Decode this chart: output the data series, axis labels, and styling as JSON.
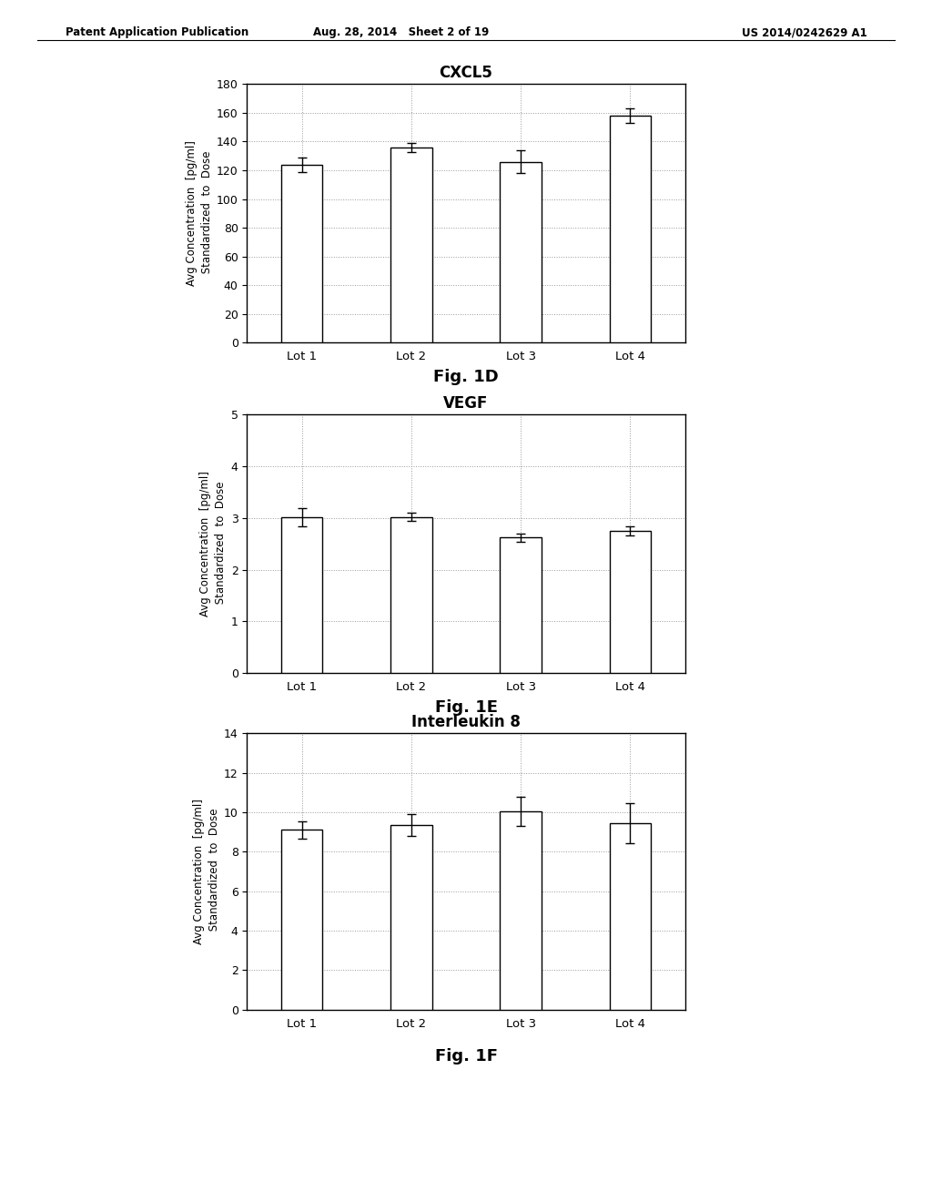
{
  "charts": [
    {
      "title": "CXCL5",
      "fig_label": "Fig. 1D",
      "categories": [
        "Lot 1",
        "Lot 2",
        "Lot 3",
        "Lot 4"
      ],
      "values": [
        124.0,
        136.0,
        126.0,
        158.0
      ],
      "errors": [
        5.0,
        3.0,
        8.0,
        5.0
      ],
      "ylim": [
        0,
        180
      ],
      "yticks": [
        0,
        20,
        40,
        60,
        80,
        100,
        120,
        140,
        160,
        180
      ],
      "ylabel": "Avg Concentration  [pg/ml]\n Standardized  to  Dose"
    },
    {
      "title": "VEGF",
      "fig_label": "Fig. 1E",
      "categories": [
        "Lot 1",
        "Lot 2",
        "Lot 3",
        "Lot 4"
      ],
      "values": [
        3.02,
        3.02,
        2.62,
        2.75
      ],
      "errors": [
        0.18,
        0.08,
        0.08,
        0.09
      ],
      "ylim": [
        0,
        5
      ],
      "yticks": [
        0,
        1,
        2,
        3,
        4,
        5
      ],
      "ylabel": "Avg Concentration  [pg/ml]\n Standardized  to  Dose"
    },
    {
      "title": "Interleukin 8",
      "fig_label": "Fig. 1F",
      "categories": [
        "Lot 1",
        "Lot 2",
        "Lot 3",
        "Lot 4"
      ],
      "values": [
        9.1,
        9.35,
        10.05,
        9.45
      ],
      "errors": [
        0.45,
        0.55,
        0.75,
        1.0
      ],
      "ylim": [
        0,
        14
      ],
      "yticks": [
        0,
        2,
        4,
        6,
        8,
        10,
        12,
        14
      ],
      "ylabel": "Avg Concentration  [pg/ml]\n Standardized  to  Dose"
    }
  ],
  "header_left": "Patent Application Publication",
  "header_mid": "Aug. 28, 2014   Sheet 2 of 19",
  "header_right": "US 2014/0242629 A1",
  "background_color": "#ffffff",
  "bar_color": "#ffffff",
  "bar_edge_color": "#000000",
  "error_color": "#000000",
  "grid_color": "#999999",
  "grid_style": "dotted"
}
